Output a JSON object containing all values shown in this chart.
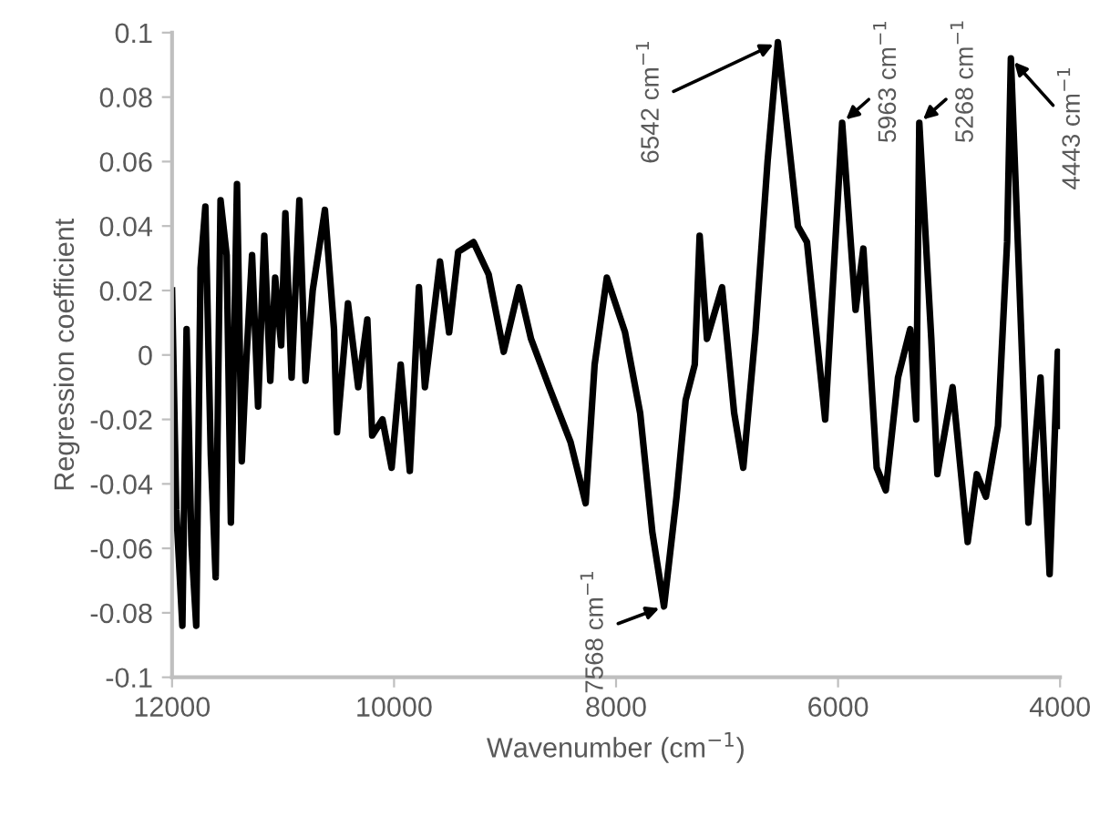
{
  "chart_data": {
    "type": "line",
    "xlabel": "Wavenumber (cm$^{−1}$)",
    "ylabel": "Regression coefficient",
    "x": [
      12000,
      11962,
      11907,
      11869,
      11825,
      11782,
      11743,
      11700,
      11651,
      11607,
      11563,
      11508,
      11470,
      11415,
      11372,
      11333,
      11279,
      11225,
      11169,
      11115,
      11071,
      11017,
      10979,
      10923,
      10853,
      10798,
      10733,
      10623,
      10541,
      10514,
      10415,
      10323,
      10241,
      10197,
      10104,
      10022,
      9940,
      9858,
      9776,
      9722,
      9586,
      9504,
      9422,
      9284,
      9148,
      9012,
      8874,
      8766,
      8602,
      8410,
      8274,
      8193,
      8083,
      7919,
      7783,
      7673,
      7568,
      7455,
      7373,
      7291,
      7247,
      7181,
      7045,
      6936,
      6854,
      6744,
      6635,
      6542,
      6362,
      6280,
      6116,
      5963,
      5842,
      5772,
      5652,
      5570,
      5460,
      5350,
      5296,
      5268,
      5160,
      5105,
      4968,
      4832,
      4750,
      4668,
      4559,
      4477,
      4443,
      4285,
      4176,
      4094,
      4020,
      4000
    ],
    "series": [
      {
        "color": "#000000",
        "values": [
          0.02,
          -0.048,
          -0.084,
          0.008,
          -0.059,
          -0.084,
          0.027,
          0.046,
          -0.031,
          -0.069,
          0.048,
          0.031,
          -0.052,
          0.053,
          -0.033,
          -0.003,
          0.031,
          -0.016,
          0.037,
          -0.008,
          0.024,
          0.003,
          0.044,
          -0.007,
          0.048,
          -0.008,
          0.02,
          0.045,
          0.008,
          -0.024,
          0.016,
          -0.01,
          0.011,
          -0.025,
          -0.02,
          -0.035,
          -0.003,
          -0.036,
          0.021,
          -0.01,
          0.029,
          0.007,
          0.032,
          0.035,
          0.025,
          0.001,
          0.021,
          0.005,
          -0.01,
          -0.027,
          -0.046,
          -0.003,
          0.024,
          0.007,
          -0.018,
          -0.055,
          -0.078,
          -0.044,
          -0.014,
          -0.003,
          0.037,
          0.005,
          0.021,
          -0.018,
          -0.035,
          0.007,
          0.06,
          0.097,
          0.04,
          0.035,
          -0.02,
          0.072,
          0.014,
          0.033,
          -0.035,
          -0.042,
          -0.007,
          0.008,
          -0.02,
          0.072,
          0.005,
          -0.037,
          -0.01,
          -0.058,
          -0.037,
          -0.044,
          -0.022,
          0.035,
          0.092,
          -0.052,
          -0.007,
          -0.068,
          0.001,
          -0.022
        ]
      }
    ],
    "xlim": [
      12000,
      4000
    ],
    "xticks": [
      12000,
      10000,
      8000,
      6000,
      4000
    ],
    "ylim": [
      -0.1,
      0.1
    ],
    "yticks": [
      -0.1,
      -0.08,
      -0.06,
      -0.04,
      -0.02,
      0,
      0.02,
      0.04,
      0.06,
      0.08,
      0.1
    ],
    "grid": false,
    "legend": false,
    "marker": "none",
    "line_style": "solid",
    "annotations": [
      {
        "text": "6542 cm$^{−1}$",
        "x": 6542,
        "y": 0.097
      },
      {
        "text": "5963 cm$^{−1}$",
        "x": 5963,
        "y": 0.072
      },
      {
        "text": "5268 cm$^{−1}$",
        "x": 5268,
        "y": 0.072
      },
      {
        "text": "4443 cm$^{−1}$",
        "x": 4443,
        "y": 0.092
      },
      {
        "text": "7568 cm$^{−1}$",
        "x": 7568,
        "y": -0.078
      }
    ]
  }
}
